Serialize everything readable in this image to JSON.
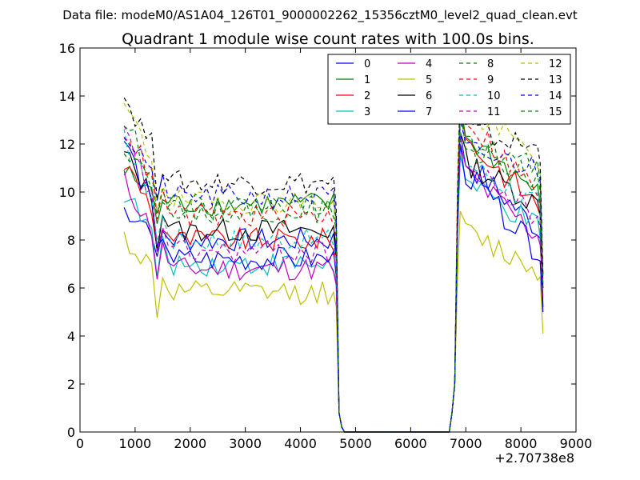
{
  "chart_data": {
    "type": "line",
    "suptitle": "Data file: modeM0/AS1A04_126T01_9000002262_15356cztM0_level2_quad_clean.evt",
    "title": "Quadrant 1 module wise count rates with 100.0s bins.",
    "xlabel": "",
    "ylabel": "",
    "x_offset_label": "+2.70738e8",
    "xlim": [
      0,
      9000
    ],
    "ylim": [
      0,
      16
    ],
    "x_ticks": [
      0,
      1000,
      2000,
      3000,
      4000,
      5000,
      6000,
      7000,
      8000,
      9000
    ],
    "y_ticks": [
      0,
      2,
      4,
      6,
      8,
      10,
      12,
      14,
      16
    ],
    "legend_position": "top-right",
    "legend_columns": 4,
    "x_segment1": [
      800,
      900,
      1000,
      1100,
      1200,
      1300,
      1400,
      1500,
      1600,
      1700,
      1800,
      1900,
      2000,
      2100,
      2200,
      2300,
      2400,
      2500,
      2600,
      2700,
      2800,
      2900,
      3000,
      3100,
      3200,
      3300,
      3400,
      3500,
      3600,
      3700,
      3800,
      3900,
      4000,
      4100,
      4200,
      4300,
      4400,
      4500,
      4600,
      4650,
      4700,
      4750,
      4800
    ],
    "x_segment2": [
      6700,
      6750,
      6800,
      6850,
      6900,
      7000,
      7100,
      7200,
      7300,
      7400,
      7500,
      7600,
      7700,
      7800,
      7900,
      8000,
      8100,
      8200,
      8300,
      8350,
      8400
    ],
    "series": [
      {
        "name": "0",
        "color": "#0000ff",
        "dash": "solid",
        "level1": 9.3,
        "level2": 8.0,
        "peak1": 12.5,
        "peak2": 8.5,
        "end2": 6.0
      },
      {
        "name": "1",
        "color": "#008000",
        "dash": "solid",
        "level1": 10.8,
        "level2": 9.5,
        "peak1": 13.7,
        "peak2": 10.0,
        "end2": 6.5
      },
      {
        "name": "2",
        "color": "#ff0000",
        "dash": "solid",
        "level1": 11.2,
        "level2": 8.0,
        "peak1": 13.5,
        "peak2": 9.5,
        "end2": 6.2
      },
      {
        "name": "3",
        "color": "#00bfbf",
        "dash": "solid",
        "level1": 10.0,
        "level2": 7.0,
        "peak1": 11.5,
        "peak2": 8.5,
        "end2": 7.0
      },
      {
        "name": "4",
        "color": "#bf00bf",
        "dash": "solid",
        "level1": 10.5,
        "level2": 6.8,
        "peak1": 12.0,
        "peak2": 8.2,
        "end2": 6.0
      },
      {
        "name": "5",
        "color": "#bfbf00",
        "dash": "solid",
        "level1": 8.1,
        "level2": 5.8,
        "peak1": 9.2,
        "peak2": 6.8,
        "end2": 4.1
      },
      {
        "name": "6",
        "color": "#000000",
        "dash": "solid",
        "level1": 11.6,
        "level2": 8.4,
        "peak1": 12.5,
        "peak2": 9.5,
        "end2": 5.2
      },
      {
        "name": "7",
        "color": "#0000ff",
        "dash": "solid",
        "level1": 12.2,
        "level2": 7.2,
        "peak1": 12.0,
        "peak2": 7.5,
        "end2": 5.0
      },
      {
        "name": "8",
        "color": "#008000",
        "dash": "dashed",
        "level1": 13.0,
        "level2": 9.2,
        "peak1": 13.5,
        "peak2": 11.0,
        "end2": 6.5
      },
      {
        "name": "9",
        "color": "#ff0000",
        "dash": "dashed",
        "level1": 12.7,
        "level2": 9.0,
        "peak1": 14.5,
        "peak2": 10.0,
        "end2": 6.0
      },
      {
        "name": "10",
        "color": "#00bfbf",
        "dash": "dashed",
        "level1": 12.2,
        "level2": 8.0,
        "peak1": 12.5,
        "peak2": 9.5,
        "end2": 6.5
      },
      {
        "name": "11",
        "color": "#bf00bf",
        "dash": "dashed",
        "level1": 12.5,
        "level2": 7.5,
        "peak1": 12.3,
        "peak2": 9.0,
        "end2": 5.5
      },
      {
        "name": "12",
        "color": "#bfbf00",
        "dash": "dashed",
        "level1": 13.6,
        "level2": 9.6,
        "peak1": 14.9,
        "peak2": 11.5,
        "end2": 6.5
      },
      {
        "name": "13",
        "color": "#000000",
        "dash": "dashed",
        "level1": 14.0,
        "level2": 10.4,
        "peak1": 14.0,
        "peak2": 11.8,
        "end2": 6.5
      },
      {
        "name": "14",
        "color": "#0000ff",
        "dash": "dashed",
        "level1": 12.5,
        "level2": 9.8,
        "peak1": 13.0,
        "peak2": 11.0,
        "end2": 6.0
      },
      {
        "name": "15",
        "color": "#008000",
        "dash": "dashed",
        "level1": 12.0,
        "level2": 9.4,
        "peak1": 13.2,
        "peak2": 10.5,
        "end2": 6.0
      }
    ]
  }
}
